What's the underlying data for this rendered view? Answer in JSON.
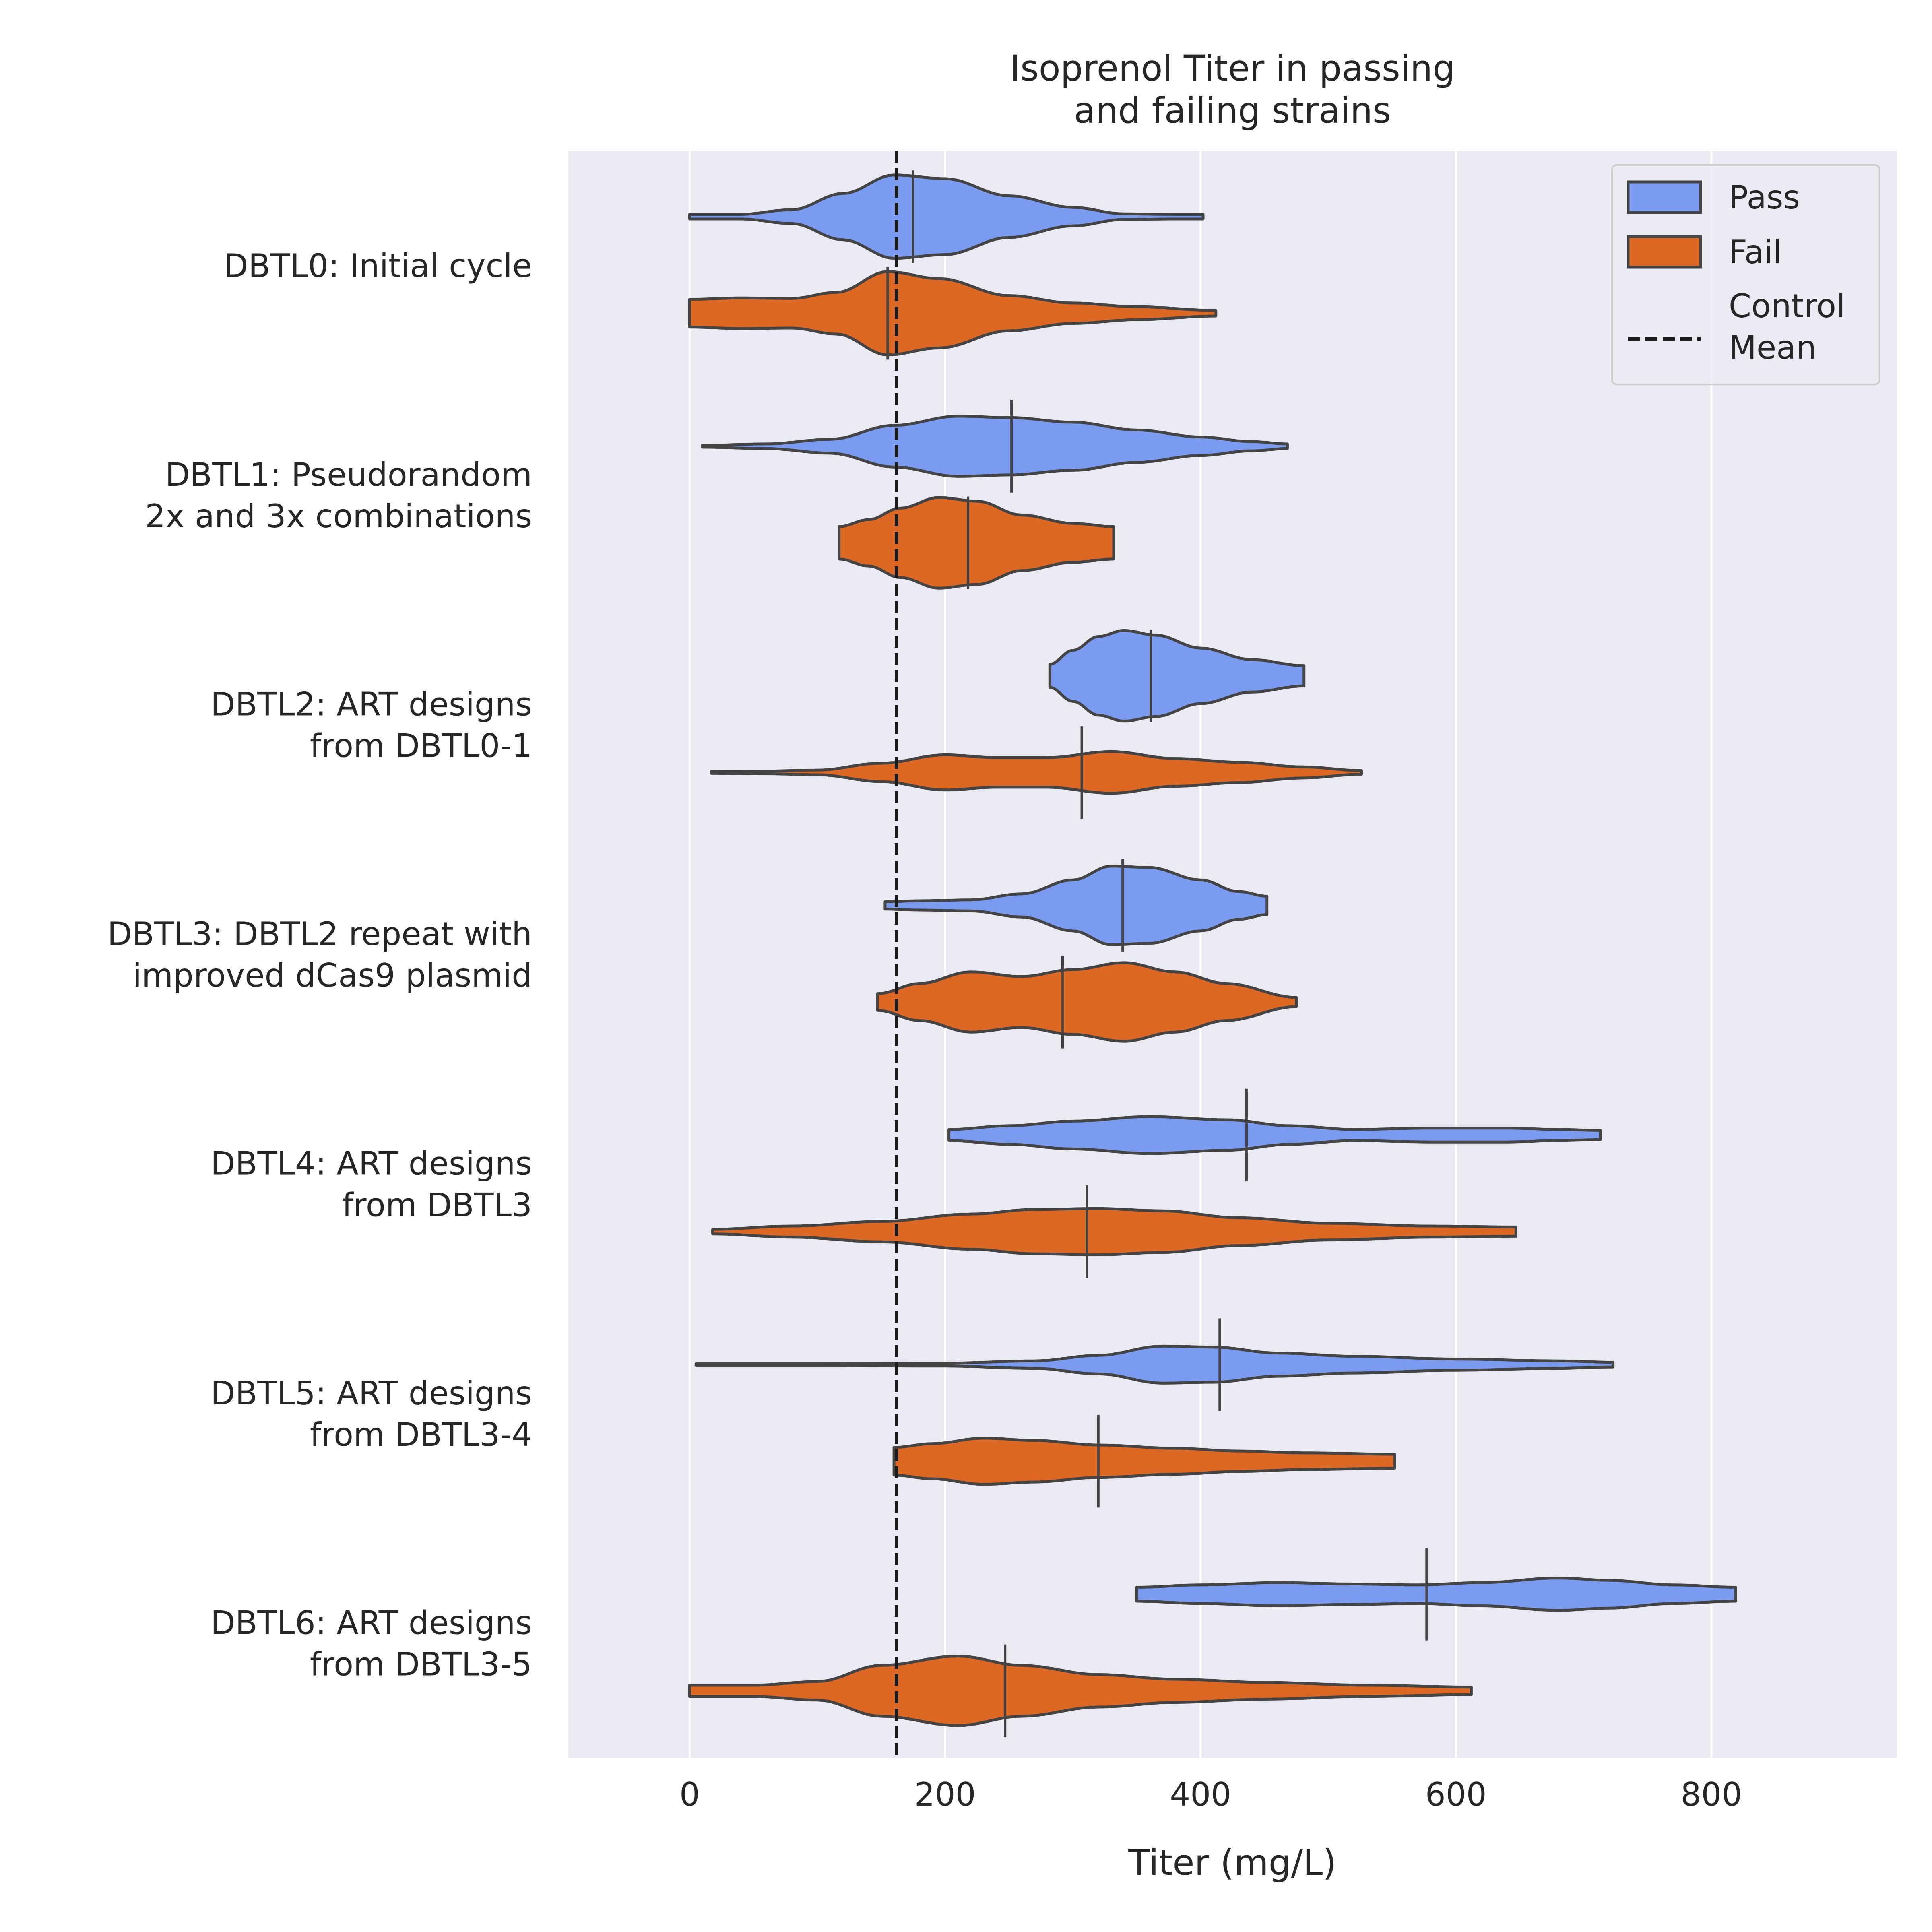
{
  "chart_data": {
    "type": "violin",
    "orientation": "horizontal",
    "title": [
      "Isoprenol Titer in passing",
      "and failing strains"
    ],
    "xlabel": "Titer (mg/L)",
    "ylabel": "",
    "xlim": [
      -95,
      945
    ],
    "xticks": [
      0,
      200,
      400,
      600,
      800
    ],
    "grid": true,
    "legend_position": "top-right",
    "colors": {
      "Pass": "#7a9bef",
      "Fail": "#dd6823",
      "edge": "#444444",
      "background": "#eaeaf2"
    },
    "control_mean": 162,
    "legend": [
      {
        "key": "Pass",
        "label": "Pass",
        "kind": "patch"
      },
      {
        "key": "Fail",
        "label": "Fail",
        "kind": "patch"
      },
      {
        "key": "control",
        "label": [
          "Control",
          "Mean"
        ],
        "kind": "dashed-line"
      }
    ],
    "groups": [
      {
        "label": [
          "DBTL0: Initial cycle"
        ],
        "Pass": {
          "range": [
            0,
            402
          ],
          "median": 175,
          "profile": [
            [
              0,
              0.05
            ],
            [
              40,
              0.05
            ],
            [
              80,
              0.15
            ],
            [
              120,
              0.5
            ],
            [
              160,
              0.9
            ],
            [
              200,
              0.82
            ],
            [
              250,
              0.45
            ],
            [
              300,
              0.2
            ],
            [
              340,
              0.06
            ],
            [
              380,
              0.05
            ],
            [
              402,
              0.05
            ]
          ]
        },
        "Fail": {
          "range": [
            0,
            412
          ],
          "median": 155,
          "profile": [
            [
              0,
              0.3
            ],
            [
              40,
              0.33
            ],
            [
              80,
              0.32
            ],
            [
              115,
              0.45
            ],
            [
              155,
              0.9
            ],
            [
              195,
              0.75
            ],
            [
              250,
              0.38
            ],
            [
              300,
              0.22
            ],
            [
              350,
              0.14
            ],
            [
              412,
              0.06
            ]
          ]
        }
      },
      {
        "label": [
          "DBTL1: Pseudorandom",
          "2x and 3x combinations"
        ],
        "Pass": {
          "range": [
            10,
            468
          ],
          "median": 252,
          "profile": [
            [
              10,
              0.02
            ],
            [
              60,
              0.05
            ],
            [
              110,
              0.15
            ],
            [
              160,
              0.45
            ],
            [
              210,
              0.65
            ],
            [
              250,
              0.62
            ],
            [
              300,
              0.52
            ],
            [
              350,
              0.35
            ],
            [
              400,
              0.2
            ],
            [
              440,
              0.1
            ],
            [
              468,
              0.05
            ]
          ]
        },
        "Fail": {
          "range": [
            117,
            332
          ],
          "median": 218,
          "profile": [
            [
              117,
              0.35
            ],
            [
              140,
              0.5
            ],
            [
              165,
              0.75
            ],
            [
              195,
              0.98
            ],
            [
              225,
              0.9
            ],
            [
              260,
              0.6
            ],
            [
              300,
              0.42
            ],
            [
              332,
              0.35
            ]
          ]
        }
      },
      {
        "label": [
          "DBTL2: ART designs",
          "from DBTL0-1"
        ],
        "Pass": {
          "range": [
            282,
            481
          ],
          "median": 361,
          "profile": [
            [
              282,
              0.25
            ],
            [
              300,
              0.55
            ],
            [
              320,
              0.85
            ],
            [
              340,
              0.98
            ],
            [
              365,
              0.88
            ],
            [
              400,
              0.6
            ],
            [
              440,
              0.35
            ],
            [
              481,
              0.22
            ]
          ]
        },
        "Fail": {
          "range": [
            17,
            526
          ],
          "median": 307,
          "profile": [
            [
              17,
              0.02
            ],
            [
              60,
              0.03
            ],
            [
              100,
              0.05
            ],
            [
              150,
              0.2
            ],
            [
              200,
              0.38
            ],
            [
              240,
              0.32
            ],
            [
              280,
              0.32
            ],
            [
              330,
              0.45
            ],
            [
              380,
              0.3
            ],
            [
              430,
              0.22
            ],
            [
              480,
              0.12
            ],
            [
              526,
              0.04
            ]
          ]
        }
      },
      {
        "label": [
          "DBTL3: DBTL2 repeat with",
          "improved dCas9 plasmid"
        ],
        "Pass": {
          "range": [
            153,
            452
          ],
          "median": 339,
          "profile": [
            [
              153,
              0.08
            ],
            [
              180,
              0.1
            ],
            [
              220,
              0.12
            ],
            [
              260,
              0.25
            ],
            [
              300,
              0.55
            ],
            [
              330,
              0.85
            ],
            [
              360,
              0.82
            ],
            [
              400,
              0.55
            ],
            [
              430,
              0.3
            ],
            [
              452,
              0.2
            ]
          ]
        },
        "Fail": {
          "range": [
            147,
            475
          ],
          "median": 292,
          "profile": [
            [
              147,
              0.18
            ],
            [
              180,
              0.4
            ],
            [
              220,
              0.65
            ],
            [
              260,
              0.55
            ],
            [
              300,
              0.7
            ],
            [
              340,
              0.85
            ],
            [
              380,
              0.65
            ],
            [
              420,
              0.4
            ],
            [
              475,
              0.1
            ]
          ]
        }
      },
      {
        "label": [
          "DBTL4: ART designs",
          "from DBTL3"
        ],
        "Pass": {
          "range": [
            203,
            713
          ],
          "median": 436,
          "profile": [
            [
              203,
              0.12
            ],
            [
              250,
              0.2
            ],
            [
              300,
              0.3
            ],
            [
              360,
              0.4
            ],
            [
              420,
              0.33
            ],
            [
              470,
              0.2
            ],
            [
              520,
              0.12
            ],
            [
              580,
              0.15
            ],
            [
              640,
              0.15
            ],
            [
              680,
              0.12
            ],
            [
              713,
              0.1
            ]
          ]
        },
        "Fail": {
          "range": [
            18,
            647
          ],
          "median": 311,
          "profile": [
            [
              18,
              0.05
            ],
            [
              80,
              0.12
            ],
            [
              150,
              0.22
            ],
            [
              220,
              0.38
            ],
            [
              270,
              0.48
            ],
            [
              320,
              0.5
            ],
            [
              370,
              0.45
            ],
            [
              430,
              0.3
            ],
            [
              500,
              0.18
            ],
            [
              580,
              0.12
            ],
            [
              647,
              0.1
            ]
          ]
        }
      },
      {
        "label": [
          "DBTL5: ART designs",
          "from DBTL3-4"
        ],
        "Pass": {
          "range": [
            5,
            723
          ],
          "median": 415,
          "profile": [
            [
              5,
              0.02
            ],
            [
              100,
              0.02
            ],
            [
              200,
              0.03
            ],
            [
              270,
              0.08
            ],
            [
              320,
              0.2
            ],
            [
              370,
              0.4
            ],
            [
              410,
              0.38
            ],
            [
              460,
              0.25
            ],
            [
              520,
              0.18
            ],
            [
              600,
              0.12
            ],
            [
              680,
              0.08
            ],
            [
              723,
              0.05
            ]
          ]
        },
        "Fail": {
          "range": [
            160,
            552
          ],
          "median": 320,
          "profile": [
            [
              160,
              0.3
            ],
            [
              190,
              0.38
            ],
            [
              230,
              0.5
            ],
            [
              270,
              0.45
            ],
            [
              320,
              0.35
            ],
            [
              380,
              0.28
            ],
            [
              430,
              0.22
            ],
            [
              480,
              0.18
            ],
            [
              552,
              0.15
            ]
          ]
        }
      },
      {
        "label": [
          "DBTL6: ART designs",
          "from DBTL3-5"
        ],
        "Pass": {
          "range": [
            350,
            819
          ],
          "median": 577,
          "profile": [
            [
              350,
              0.15
            ],
            [
              400,
              0.2
            ],
            [
              460,
              0.25
            ],
            [
              520,
              0.22
            ],
            [
              570,
              0.2
            ],
            [
              620,
              0.25
            ],
            [
              680,
              0.35
            ],
            [
              720,
              0.3
            ],
            [
              770,
              0.2
            ],
            [
              819,
              0.15
            ]
          ]
        },
        "Fail": {
          "range": [
            0,
            612
          ],
          "median": 247,
          "profile": [
            [
              0,
              0.12
            ],
            [
              50,
              0.12
            ],
            [
              100,
              0.2
            ],
            [
              150,
              0.55
            ],
            [
              210,
              0.75
            ],
            [
              260,
              0.55
            ],
            [
              320,
              0.35
            ],
            [
              380,
              0.25
            ],
            [
              450,
              0.18
            ],
            [
              530,
              0.12
            ],
            [
              612,
              0.08
            ]
          ]
        }
      }
    ]
  }
}
